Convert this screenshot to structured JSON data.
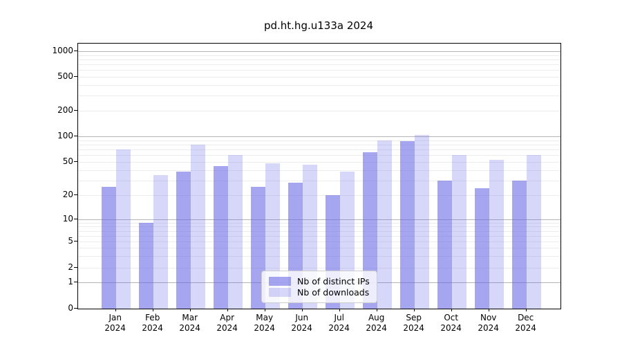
{
  "title": "pd.ht.hg.u133a 2024",
  "legend": {
    "ips_label": "Nb of distinct IPs",
    "downloads_label": "Nb of downloads"
  },
  "colors": {
    "base_hex": "#6666e6",
    "ips_fill": "rgba(102,102,230,0.58)",
    "downloads_fill": "rgba(102,102,230,0.26)",
    "major_grid": "#b3b3b3",
    "minor_grid": "#ececec",
    "axis": "#000000"
  },
  "chart_data": {
    "type": "bar",
    "title": "pd.ht.hg.u133a 2024",
    "categories": [
      "Jan",
      "Feb",
      "Mar",
      "Apr",
      "May",
      "Jun",
      "Jul",
      "Aug",
      "Sep",
      "Oct",
      "Nov",
      "Dec"
    ],
    "year": "2024",
    "series": [
      {
        "name": "Nb of distinct IPs",
        "values": [
          25,
          9,
          38,
          45,
          25,
          28,
          20,
          65,
          87,
          30,
          24,
          30
        ]
      },
      {
        "name": "Nb of downloads",
        "values": [
          70,
          35,
          80,
          60,
          48,
          46,
          38,
          90,
          104,
          60,
          53,
          60
        ]
      }
    ],
    "xlabel": "",
    "ylabel": "",
    "yticks": [
      0,
      1,
      2,
      5,
      10,
      20,
      50,
      100,
      200,
      500,
      1000
    ],
    "ylim": [
      0,
      1150
    ],
    "yscale": "log-like (linear below 1)",
    "grid": true,
    "legend_position": "bottom-center"
  }
}
